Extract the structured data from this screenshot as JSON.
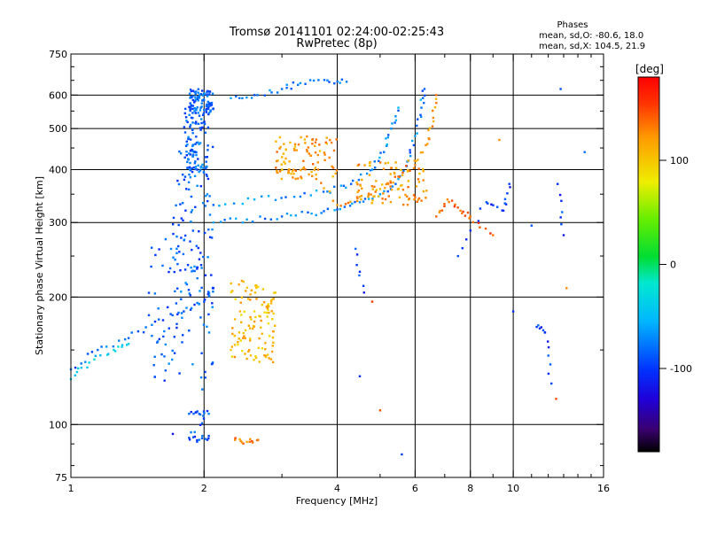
{
  "chart_data": {
    "type": "scatter",
    "title": "Tromsø 20141101 02:24:00-02:25:43",
    "subtitle": "RwPretec (8p)",
    "xlabel": "Frequency [MHz]",
    "ylabel": "Stationary phase Virtual Height [km]",
    "x_scale": "log",
    "y_scale": "log",
    "xlim": [
      1,
      16
    ],
    "ylim": [
      75,
      750
    ],
    "x_ticks": [
      1,
      2,
      4,
      6,
      8,
      10,
      16
    ],
    "y_ticks": [
      75,
      100,
      200,
      300,
      400,
      500,
      600,
      750
    ],
    "x_grid": [
      2,
      4,
      6,
      8,
      10
    ],
    "y_grid": [
      100,
      200,
      300,
      400,
      500,
      600
    ],
    "grid": true,
    "stats": {
      "title": "Phases",
      "line_o": "mean, sd,O: -80.6, 18.0",
      "line_x": "mean, sd,X: 104.5, 21.9"
    },
    "colorbar": {
      "label": "[deg]",
      "range": [
        -180,
        180
      ],
      "ticks": [
        -100,
        0,
        100
      ],
      "colormap": "rainbow",
      "placement": "right"
    },
    "series": [
      {
        "phase": -85,
        "trace": [
          [
            1.0,
            135
          ],
          [
            1.15,
            150
          ],
          [
            1.35,
            160
          ],
          [
            1.55,
            175
          ],
          [
            1.8,
            185
          ],
          [
            2.0,
            195
          ],
          [
            2.1,
            210
          ]
        ],
        "ranges": [
          [
            1.5,
            2.1,
            120,
            280
          ],
          [
            1.7,
            2.1,
            200,
            480
          ],
          [
            1.8,
            2.05,
            380,
            560
          ],
          [
            1.85,
            2.1,
            540,
            620
          ]
        ]
      },
      {
        "phase": -40,
        "trace": [
          [
            1.0,
            128
          ],
          [
            1.1,
            140
          ],
          [
            1.25,
            150
          ],
          [
            1.35,
            155
          ]
        ]
      },
      {
        "phase": -75,
        "trace": [
          [
            2.1,
            300
          ],
          [
            2.5,
            305
          ],
          [
            3.0,
            310
          ],
          [
            3.5,
            315
          ],
          [
            4.0,
            322
          ],
          [
            4.5,
            335
          ],
          [
            5.0,
            350
          ],
          [
            5.5,
            380
          ],
          [
            5.8,
            420
          ],
          [
            6.0,
            480
          ],
          [
            6.2,
            560
          ],
          [
            6.3,
            620
          ]
        ]
      },
      {
        "phase": -70,
        "trace": [
          [
            2.1,
            330
          ],
          [
            2.6,
            340
          ],
          [
            3.2,
            345
          ],
          [
            3.8,
            355
          ],
          [
            4.3,
            370
          ],
          [
            4.8,
            400
          ],
          [
            5.1,
            440
          ],
          [
            5.3,
            500
          ],
          [
            5.5,
            560
          ]
        ]
      },
      {
        "phase": -80,
        "trace": [
          [
            2.3,
            590
          ],
          [
            2.6,
            600
          ],
          [
            3.0,
            620
          ],
          [
            3.3,
            640
          ],
          [
            3.8,
            650
          ],
          [
            4.2,
            645
          ]
        ]
      },
      {
        "phase": 120,
        "trace": [
          [
            3.0,
            400
          ],
          [
            3.5,
            395
          ],
          [
            4.0,
            330
          ],
          [
            4.5,
            345
          ],
          [
            5.0,
            360
          ],
          [
            5.5,
            385
          ],
          [
            6.0,
            410
          ],
          [
            6.4,
            460
          ],
          [
            6.6,
            520
          ],
          [
            6.7,
            600
          ]
        ],
        "ranges": [
          [
            2.9,
            4.0,
            380,
            480
          ],
          [
            4.4,
            6.4,
            330,
            420
          ]
        ]
      },
      {
        "phase": 105,
        "trace": [
          [
            2.3,
            150
          ],
          [
            2.45,
            160
          ],
          [
            2.6,
            175
          ],
          [
            2.8,
            190
          ],
          [
            2.9,
            205
          ]
        ],
        "ranges": [
          [
            2.3,
            2.9,
            140,
            220
          ]
        ]
      },
      {
        "phase": 130,
        "trace": [
          [
            2.35,
            92
          ],
          [
            2.5,
            91
          ],
          [
            2.65,
            92
          ]
        ]
      },
      {
        "phase": -90,
        "trace": [
          [
            1.85,
            106
          ],
          [
            1.95,
            106
          ],
          [
            2.05,
            106
          ],
          [
            1.85,
            93
          ],
          [
            1.95,
            92
          ],
          [
            2.05,
            94
          ]
        ]
      },
      {
        "phase": -100,
        "trace": [
          [
            1.7,
            95
          ],
          [
            4.4,
            260
          ],
          [
            4.6,
            205
          ],
          [
            4.5,
            130
          ],
          [
            5.6,
            85
          ],
          [
            7.5,
            250
          ],
          [
            8.7,
            335
          ],
          [
            9.5,
            320
          ],
          [
            9.8,
            370
          ],
          [
            10.0,
            185
          ],
          [
            11.0,
            295
          ],
          [
            11.3,
            170
          ],
          [
            11.8,
            165
          ],
          [
            12.2,
            125
          ],
          [
            12.6,
            370
          ],
          [
            13.0,
            280
          ],
          [
            12.8,
            620
          ],
          [
            14.5,
            440
          ]
        ]
      },
      {
        "phase": 140,
        "trace": [
          [
            4.8,
            195
          ],
          [
            5.0,
            108
          ],
          [
            6.7,
            310
          ],
          [
            7.1,
            340
          ],
          [
            7.6,
            320
          ],
          [
            8.0,
            310
          ],
          [
            9.0,
            280
          ],
          [
            9.3,
            470
          ],
          [
            12.5,
            115
          ],
          [
            13.2,
            210
          ]
        ]
      }
    ]
  }
}
